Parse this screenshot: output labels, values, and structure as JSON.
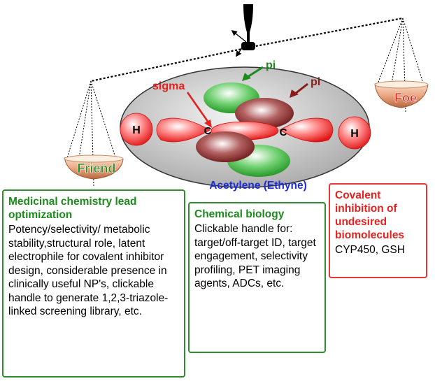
{
  "molecule": {
    "name": "Acetylene (Ethyne)",
    "atom_h": "H",
    "atom_c": "C",
    "bond_sigma": "sigma",
    "bond_pi": "pi"
  },
  "scale": {
    "left_pan": "Friend",
    "right_pan": "Foe"
  },
  "boxes": {
    "medicinal": {
      "title": "Medicinal chemistry lead optimization",
      "body": "Potency/selectivity/ metabolic stability,structural role, latent electrophile for covalent inhibitor design, considerable presence in clinically useful NP's, clickable handle to generate 1,2,3-triazole-linked screening library, etc."
    },
    "chemical_biology": {
      "title": "Chemical biology",
      "body": "Clickable handle for: target/off-target ID, target engagement, selectivity profiling, PET imaging agents, ADCs, etc."
    },
    "covalent": {
      "title": "Covalent inhibition of undesired biomolecules",
      "body": "CYP450, GSH"
    }
  },
  "colors": {
    "green": "#2e8b2e",
    "red": "#e53935",
    "dark_red": "#8b1a1a",
    "blue": "#1a2fd6",
    "gray_ellipse": "#bdbdbd"
  }
}
